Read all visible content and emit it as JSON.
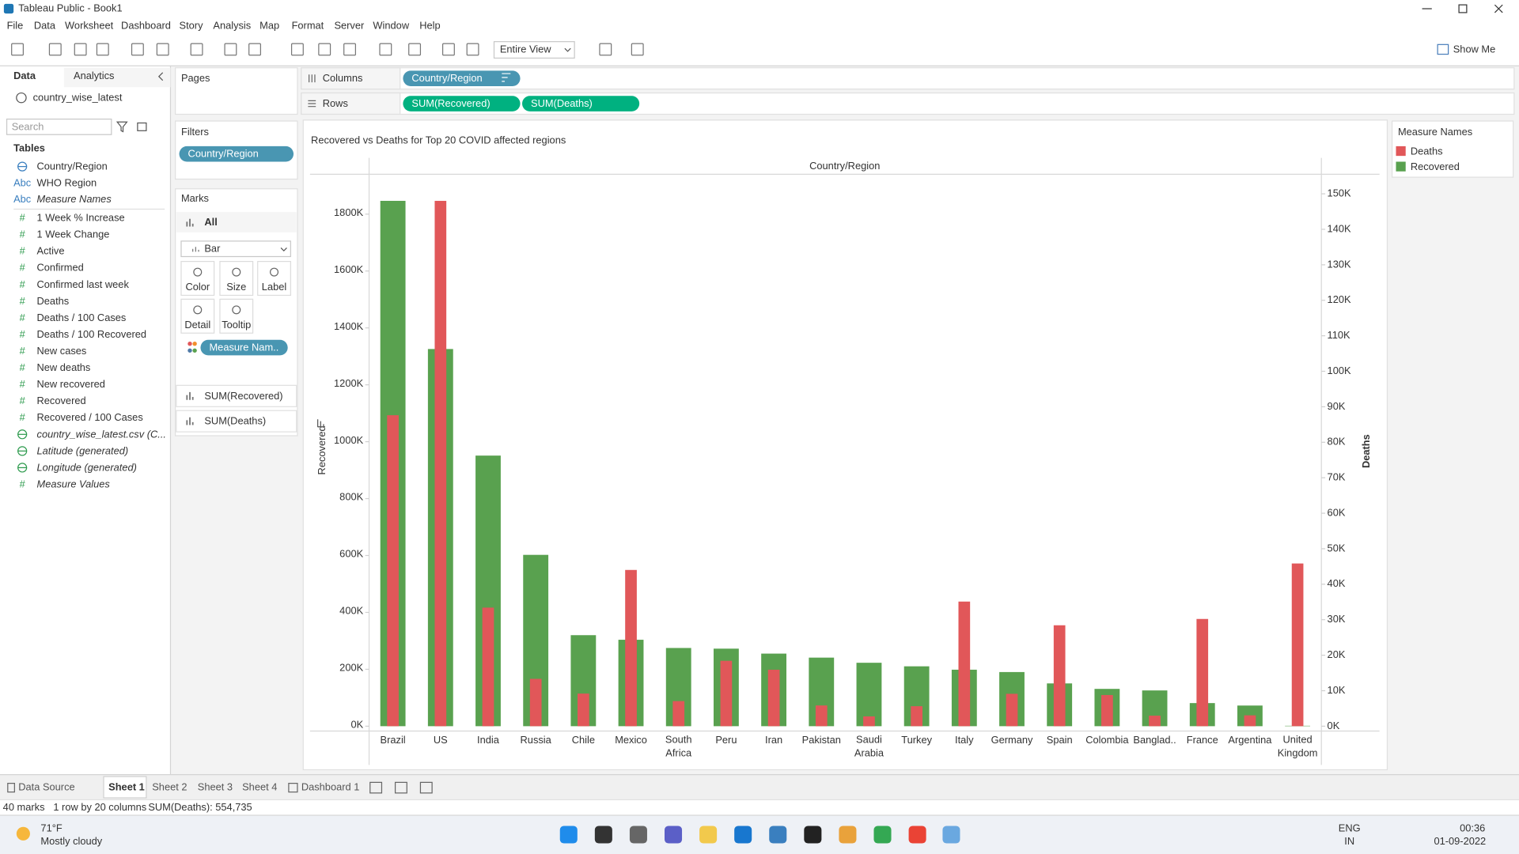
{
  "window": {
    "title": "Tableau Public - Book1"
  },
  "menu": [
    "File",
    "Data",
    "Worksheet",
    "Dashboard",
    "Story",
    "Analysis",
    "Map",
    "Format",
    "Server",
    "Window",
    "Help"
  ],
  "toolbar": {
    "view": "Entire View",
    "show_me": "Show Me"
  },
  "data_pane": {
    "tabs": [
      "Data",
      "Analytics"
    ],
    "source": "country_wise_latest",
    "search_placeholder": "Search",
    "tables_heading": "Tables",
    "fields": [
      {
        "icon": null,
        "name": "Country/Region"
      },
      {
        "icon": "Abc",
        "name": "WHO Region"
      },
      {
        "icon": "Abc",
        "name": "Measure Names",
        "italic": true
      },
      {
        "icon": "#",
        "name": "1 Week % Increase"
      },
      {
        "icon": "#",
        "name": "1 Week Change"
      },
      {
        "icon": "#",
        "name": "Active"
      },
      {
        "icon": "#",
        "name": "Confirmed"
      },
      {
        "icon": "#",
        "name": "Confirmed last week"
      },
      {
        "icon": "#",
        "name": "Deaths"
      },
      {
        "icon": "#",
        "name": "Deaths / 100 Cases"
      },
      {
        "icon": "#",
        "name": "Deaths / 100 Recovered"
      },
      {
        "icon": "#",
        "name": "New cases"
      },
      {
        "icon": "#",
        "name": "New deaths"
      },
      {
        "icon": "#",
        "name": "New recovered"
      },
      {
        "icon": "#",
        "name": "Recovered"
      },
      {
        "icon": "#",
        "name": "Recovered / 100 Cases"
      },
      {
        "icon": null,
        "name": "country_wise_latest.csv (C...",
        "italic": true
      },
      {
        "icon": null,
        "name": "Latitude (generated)",
        "italic": true
      },
      {
        "icon": null,
        "name": "Longitude (generated)",
        "italic": true
      },
      {
        "icon": "#",
        "name": "Measure Values",
        "italic": true
      }
    ]
  },
  "pages_shelf": {
    "title": "Pages"
  },
  "filters_shelf": {
    "title": "Filters",
    "pills": [
      "Country/Region"
    ]
  },
  "marks_card": {
    "title": "Marks",
    "scope": "All",
    "mark_type": "Bar",
    "buttons": [
      "Color",
      "Size",
      "Label",
      "Detail",
      "Tooltip"
    ],
    "pills": [
      "Measure Nam.."
    ],
    "measures": [
      "SUM(Recovered)",
      "SUM(Deaths)"
    ]
  },
  "shelves": {
    "columns": {
      "label": "Columns",
      "pills": [
        "Country/Region"
      ]
    },
    "rows": {
      "label": "Rows",
      "pills": [
        "SUM(Recovered)",
        "SUM(Deaths)"
      ]
    }
  },
  "chart_data": {
    "type": "bar",
    "title": "Recovered vs Deaths for Top 20 COVID affected regions",
    "x_label": "Country/Region",
    "y_label": "Recovered",
    "y2_label": "Deaths",
    "legend_title": "Measure Names",
    "legend_position": "right",
    "grid": false,
    "categories": [
      "Brazil",
      "US",
      "India",
      "Russia",
      "Chile",
      "Mexico",
      "South Africa",
      "Peru",
      "Iran",
      "Pakistan",
      "Saudi Arabia",
      "Turkey",
      "Italy",
      "Germany",
      "Spain",
      "Colombia",
      "Banglad..",
      "France",
      "Argentina",
      "United Kingdom"
    ],
    "series": [
      {
        "name": "Deaths",
        "color": "#e15759",
        "axis": "y2",
        "values": [
          87618,
          148011,
          33408,
          13334,
          9187,
          44022,
          7067,
          18418,
          15912,
          5842,
          2760,
          5630,
          35112,
          9125,
          28432,
          8777,
          2965,
          30212,
          3059,
          45844
        ]
      },
      {
        "name": "Recovered",
        "color": "#59a14f",
        "values": [
          1846641,
          1325804,
          951166,
          602249,
          319954,
          303810,
          274925,
          272547,
          255144,
          241026,
          222936,
          210469,
          198593,
          190314,
          150376,
          131161,
          125683,
          81212,
          72575,
          1437
        ]
      }
    ],
    "ylim": [
      0,
      1940000
    ],
    "yticks": [
      {
        "value": 0,
        "label": "0K"
      },
      {
        "value": 200000,
        "label": "200K"
      },
      {
        "value": 400000,
        "label": "400K"
      },
      {
        "value": 600000,
        "label": "600K"
      },
      {
        "value": 800000,
        "label": "800K"
      },
      {
        "value": 1000000,
        "label": "1000K"
      },
      {
        "value": 1200000,
        "label": "1200K"
      },
      {
        "value": 1400000,
        "label": "1400K"
      },
      {
        "value": 1600000,
        "label": "1600K"
      },
      {
        "value": 1800000,
        "label": "1800K"
      }
    ],
    "y2lim": [
      0,
      155500
    ],
    "y2ticks": [
      {
        "value": 0,
        "label": "0K"
      },
      {
        "value": 10000,
        "label": "10K"
      },
      {
        "value": 20000,
        "label": "20K"
      },
      {
        "value": 30000,
        "label": "30K"
      },
      {
        "value": 40000,
        "label": "40K"
      },
      {
        "value": 50000,
        "label": "50K"
      },
      {
        "value": 60000,
        "label": "60K"
      },
      {
        "value": 70000,
        "label": "70K"
      },
      {
        "value": 80000,
        "label": "80K"
      },
      {
        "value": 90000,
        "label": "90K"
      },
      {
        "value": 100000,
        "label": "100K"
      },
      {
        "value": 110000,
        "label": "110K"
      },
      {
        "value": 120000,
        "label": "120K"
      },
      {
        "value": 130000,
        "label": "130K"
      },
      {
        "value": 140000,
        "label": "140K"
      },
      {
        "value": 150000,
        "label": "150K"
      }
    ]
  },
  "sheet_tabs": [
    "Data Source",
    "Sheet 1",
    "Sheet 2",
    "Sheet 3",
    "Sheet 4",
    "Dashboard 1"
  ],
  "status_bar": [
    "40 marks",
    "1 row by 20 columns",
    "SUM(Deaths): 554,735"
  ],
  "taskbar": {
    "temperature": "71°F",
    "weather": "Mostly cloudy",
    "language": "ENG",
    "region": "IN",
    "time": "00:36",
    "date": "01-09-2022"
  }
}
